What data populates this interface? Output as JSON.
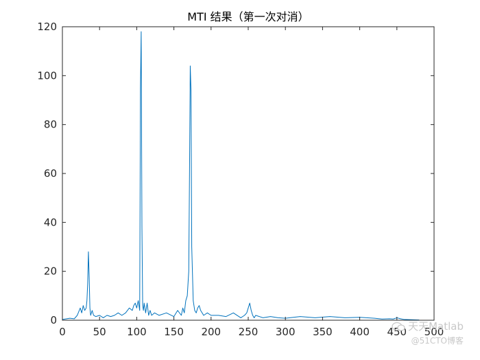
{
  "chart_data": {
    "type": "line",
    "title": "MTI 结果（第一次对消）",
    "xlabel": "",
    "ylabel": "",
    "xlim": [
      0,
      500
    ],
    "ylim": [
      0,
      120
    ],
    "xticks": [
      0,
      50,
      100,
      150,
      200,
      250,
      300,
      350,
      400,
      450,
      500
    ],
    "yticks": [
      0,
      20,
      40,
      60,
      80,
      100,
      120
    ],
    "grid": false,
    "line_color": "#0072BD",
    "series": [
      {
        "x": [
          0,
          10,
          16,
          20,
          24,
          26,
          28,
          30,
          32,
          33,
          34,
          35,
          36,
          37,
          38,
          40,
          42,
          45,
          50,
          55,
          60,
          65,
          70,
          75,
          80,
          85,
          90,
          94,
          96,
          98,
          100,
          102,
          104,
          105,
          106,
          107,
          108,
          109,
          110,
          112,
          114,
          116,
          118,
          120,
          124,
          130,
          140,
          150,
          155,
          160,
          162,
          164,
          166,
          168,
          170,
          171,
          172,
          173,
          174,
          176,
          178,
          180,
          182,
          184,
          186,
          188,
          190,
          195,
          200,
          210,
          220,
          230,
          240,
          245,
          248,
          250,
          252,
          254,
          256,
          258,
          260,
          270,
          280,
          290,
          300,
          320,
          340,
          360,
          380,
          400,
          420,
          430,
          440,
          445,
          450,
          455,
          460,
          470,
          480
        ],
        "y": [
          0.3,
          0.8,
          0.6,
          2,
          5,
          3,
          6,
          4,
          5,
          8,
          15,
          28,
          18,
          5,
          2,
          4,
          2,
          1.5,
          2,
          1,
          2,
          1.5,
          2,
          3,
          2,
          3,
          5,
          4,
          6,
          7,
          5,
          8,
          4,
          95,
          118,
          38,
          6,
          4,
          7,
          3,
          7,
          2,
          4,
          2,
          3,
          2,
          3,
          1.5,
          4,
          2,
          5,
          3,
          8,
          10,
          20,
          60,
          104,
          94,
          30,
          8,
          4,
          3,
          5,
          6,
          4,
          3,
          2,
          3,
          2,
          2,
          1.5,
          3,
          1,
          2,
          3,
          5,
          7,
          4,
          2,
          1,
          2,
          1,
          1.5,
          1,
          0.8,
          1.5,
          1,
          1.5,
          1,
          1.2,
          0.8,
          0.5,
          0.6,
          0.5,
          1,
          0.6,
          0.3,
          0.2,
          0.1
        ]
      }
    ]
  },
  "watermark": {
    "main": "天天Matlab",
    "sub": "@51CTO博客"
  }
}
